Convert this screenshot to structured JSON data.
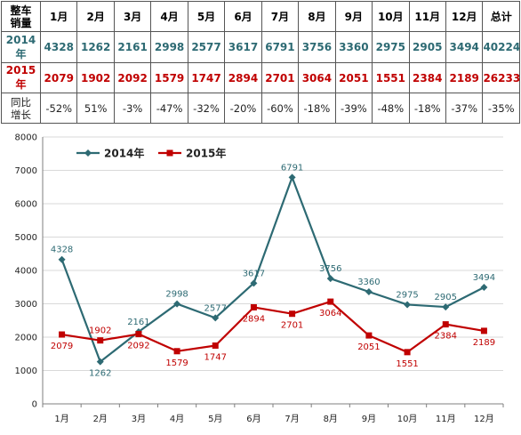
{
  "table": {
    "corner_top": "整车",
    "corner_bottom": "销量",
    "headers": [
      "1月",
      "2月",
      "3月",
      "4月",
      "5月",
      "6月",
      "7月",
      "8月",
      "9月",
      "10月",
      "11月",
      "12月",
      "总计"
    ],
    "rows": [
      {
        "label": "2014年",
        "cells": [
          "4328",
          "1262",
          "2161",
          "2998",
          "2577",
          "3617",
          "6791",
          "3756",
          "3360",
          "2975",
          "2905",
          "3494",
          "40224"
        ]
      },
      {
        "label": "2015年",
        "cells": [
          "2079",
          "1902",
          "2092",
          "1579",
          "1747",
          "2894",
          "2701",
          "3064",
          "2051",
          "1551",
          "2384",
          "2189",
          "26233"
        ]
      }
    ],
    "growth_label_top": "同比",
    "growth_label_bottom": "增长",
    "growth": [
      "-52%",
      "51%",
      "-3%",
      "-47%",
      "-32%",
      "-20%",
      "-60%",
      "-18%",
      "-39%",
      "-48%",
      "-18%",
      "-37%",
      "-35%"
    ]
  },
  "colors": {
    "teal": "#2d6a73",
    "red": "#c00000",
    "grid": "#d9d9d9",
    "axis": "#7f7f7f"
  },
  "chart_data": {
    "type": "line",
    "categories": [
      "1月",
      "2月",
      "3月",
      "4月",
      "5月",
      "6月",
      "7月",
      "8月",
      "9月",
      "10月",
      "11月",
      "12月"
    ],
    "series": [
      {
        "name": "2014年",
        "values": [
          4328,
          1262,
          2161,
          2998,
          2577,
          3617,
          6791,
          3756,
          3360,
          2975,
          2905,
          3494
        ],
        "color": "#2d6a73",
        "marker": "diamond"
      },
      {
        "name": "2015年",
        "values": [
          2079,
          1902,
          2092,
          1579,
          1747,
          2894,
          2701,
          3064,
          2051,
          1551,
          2384,
          2189
        ],
        "color": "#c00000",
        "marker": "square"
      }
    ],
    "ylim": [
      0,
      8000
    ],
    "yticks": [
      0,
      1000,
      2000,
      3000,
      4000,
      5000,
      6000,
      7000,
      8000
    ],
    "grid": true,
    "legend": "top-left",
    "title": "",
    "xlabel": "",
    "ylabel": ""
  }
}
